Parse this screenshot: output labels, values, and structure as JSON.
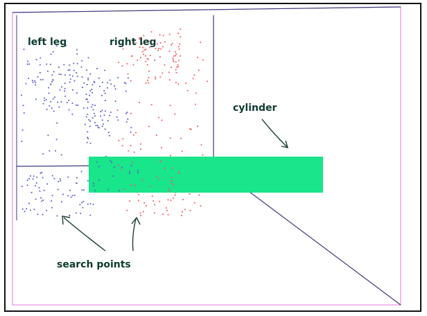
{
  "labels": {
    "left_leg": "left leg",
    "right_leg": "right leg",
    "cylinder": "cylinder",
    "search_points": "search points"
  },
  "colors": {
    "frame": "#111111",
    "room_lines": "#3a3a7a",
    "border_highlight": "#e07ad8",
    "cylinder_fill": "#19e58a",
    "left_points": "#5a5ad0",
    "right_points": "#f05a5a",
    "label_text": "#0d3b2f",
    "arrow": "#1a3a34"
  }
}
